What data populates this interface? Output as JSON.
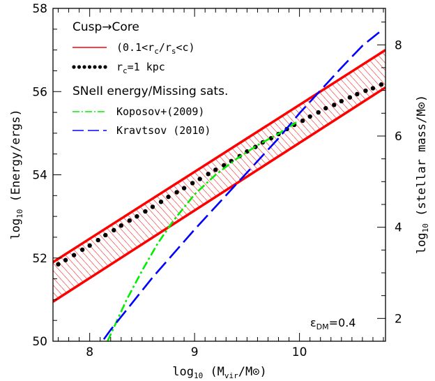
{
  "chart_data": {
    "type": "line",
    "xlabel": "log10 (Mvir/M⊙)",
    "ylabel_left": "log10 (Energy/ergs)",
    "ylabel_right": "log10 (stellar mass/M⊙)",
    "xlim": [
      7.65,
      10.82
    ],
    "ylim_left": [
      50,
      58
    ],
    "ylim_right": [
      1.5,
      8.8
    ],
    "x_ticks": [
      8,
      9,
      10
    ],
    "y_ticks_left": [
      50,
      52,
      54,
      56,
      58
    ],
    "y_ticks_right": [
      2,
      4,
      6,
      8
    ],
    "legend": {
      "header1": "Cusp→Core",
      "band_label": "(0.1<rc/rs<c)",
      "dots_label": "rc=1 kpc",
      "header2": "SNeII energy/Missing sats.",
      "koposov_label": "Koposov+(2009)",
      "kravtsov_label": "Kravtsov (2010)"
    },
    "annotation": "εDM=0.4",
    "series": [
      {
        "name": "(0.1<rc/rs<c)",
        "axis": "left",
        "style": "band",
        "color": "#ff0000",
        "x": [
          7.65,
          10.82
        ],
        "upper": [
          51.9,
          57.0
        ],
        "lower": [
          50.95,
          56.1
        ]
      },
      {
        "name": "rc=1 kpc",
        "axis": "left",
        "style": "dots",
        "color": "#000000",
        "x": [
          7.7,
          7.77,
          7.85,
          7.93,
          8.0,
          8.08,
          8.15,
          8.23,
          8.3,
          8.38,
          8.45,
          8.53,
          8.6,
          8.68,
          8.75,
          8.83,
          8.9,
          8.98,
          9.05,
          9.13,
          9.2,
          9.28,
          9.35,
          9.43,
          9.5,
          9.58,
          9.65,
          9.73,
          9.8,
          9.88,
          9.95,
          10.03,
          10.1,
          10.18,
          10.25,
          10.33,
          10.4,
          10.48,
          10.55,
          10.63,
          10.7,
          10.78
        ],
        "y": [
          51.85,
          51.95,
          52.07,
          52.2,
          52.3,
          52.43,
          52.55,
          52.67,
          52.78,
          52.9,
          53.0,
          53.12,
          53.23,
          53.35,
          53.47,
          53.58,
          53.68,
          53.8,
          53.9,
          54.02,
          54.12,
          54.23,
          54.33,
          54.45,
          54.56,
          54.67,
          54.78,
          54.88,
          54.98,
          55.1,
          55.2,
          55.3,
          55.4,
          55.5,
          55.6,
          55.68,
          55.77,
          55.86,
          55.94,
          56.02,
          56.08,
          56.17
        ]
      },
      {
        "name": "Koposov+(2009)",
        "axis": "right",
        "style": "dashdot",
        "color": "#00ee00",
        "x": [
          8.17,
          8.25,
          8.35,
          8.5,
          8.65,
          8.8,
          9.0,
          9.2,
          9.4,
          9.6,
          9.8,
          9.97
        ],
        "y": [
          1.5,
          1.9,
          2.4,
          3.05,
          3.65,
          4.15,
          4.72,
          5.15,
          5.5,
          5.8,
          6.05,
          6.3
        ]
      },
      {
        "name": "Kravtsov (2010)",
        "axis": "right",
        "style": "longdash",
        "color": "#0000ff",
        "x": [
          7.9,
          8.2,
          8.6,
          9.0,
          9.4,
          9.8,
          10.0,
          10.2,
          10.4,
          10.6,
          10.8
        ],
        "y": [
          0.8,
          1.75,
          2.9,
          3.95,
          4.95,
          5.95,
          6.5,
          7.0,
          7.5,
          7.98,
          8.35
        ]
      }
    ]
  }
}
